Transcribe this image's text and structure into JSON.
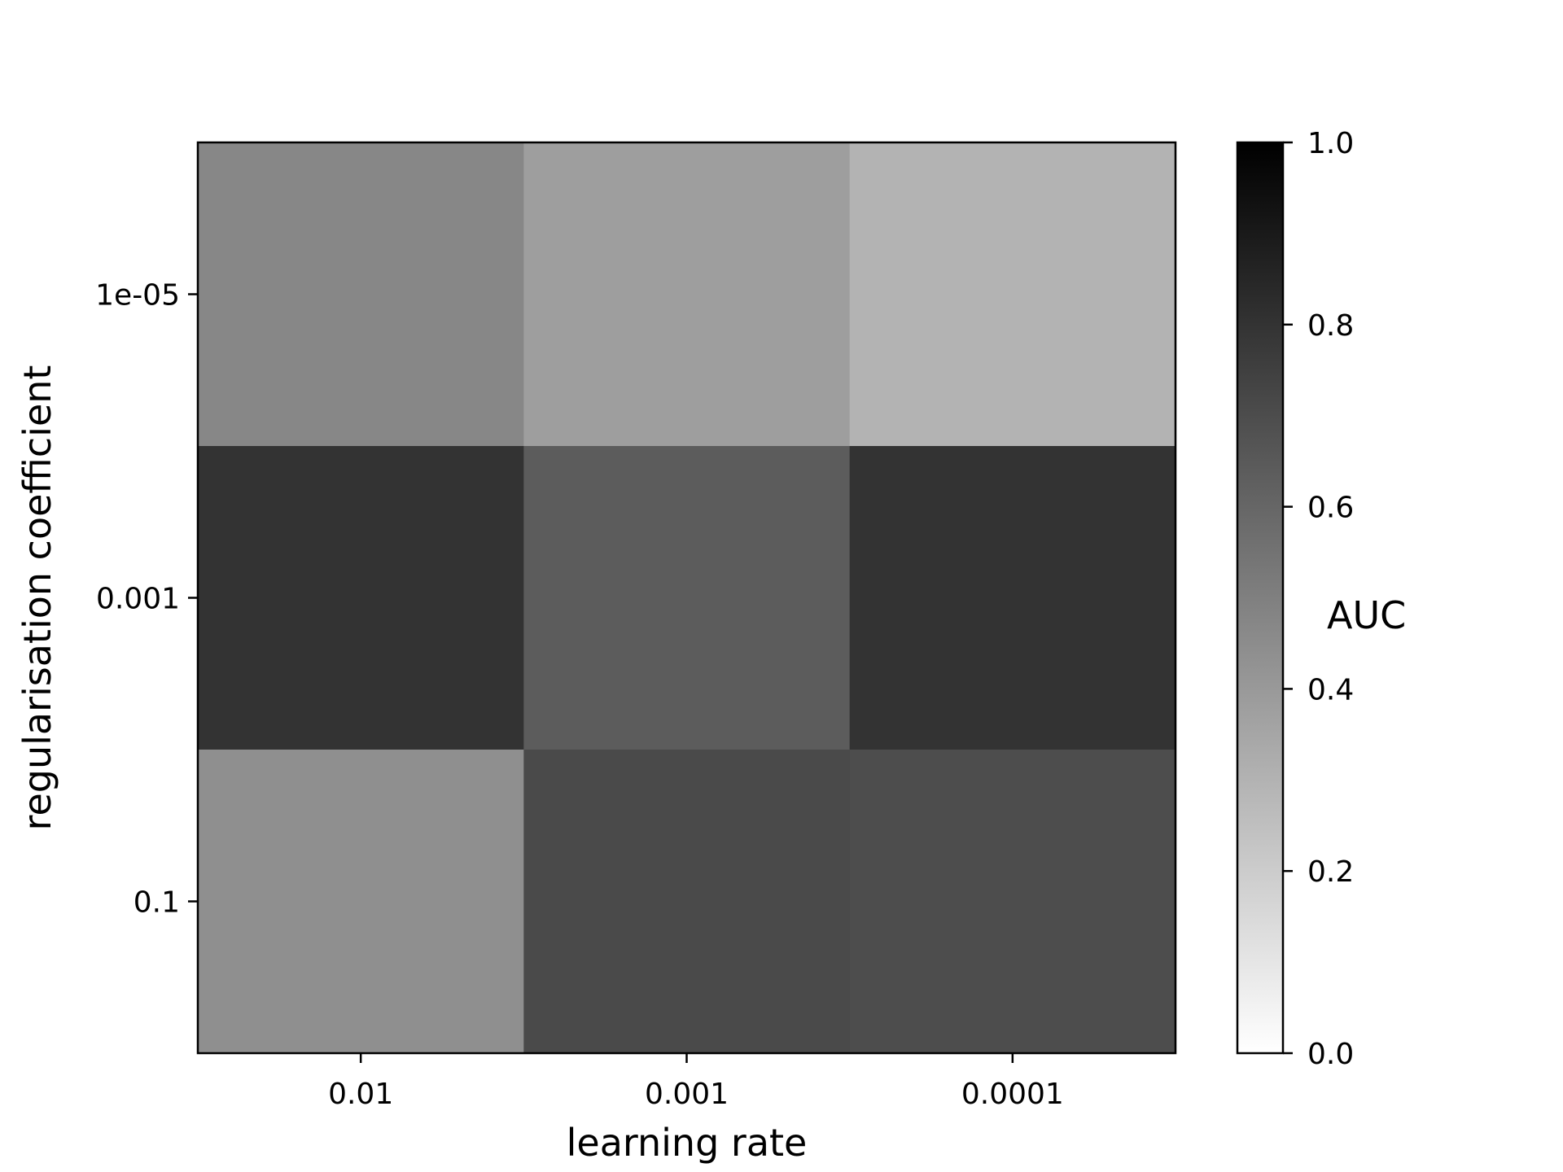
{
  "chart_data": {
    "type": "heatmap",
    "x": [
      "0.01",
      "0.001",
      "0.0001"
    ],
    "y": [
      "1e-05",
      "0.001",
      "0.1"
    ],
    "z": [
      [
        0.47,
        0.38,
        0.3
      ],
      [
        0.8,
        0.64,
        0.8
      ],
      [
        0.44,
        0.71,
        0.7
      ]
    ],
    "xlabel": "learning rate",
    "ylabel": "regularisation coefficient",
    "colorbar": {
      "label": "AUC",
      "range": [
        0.0,
        1.0
      ],
      "ticks": [
        "0.0",
        "0.2",
        "0.4",
        "0.6",
        "0.8",
        "1.0"
      ],
      "colormap": "Greys"
    },
    "grid": false
  }
}
